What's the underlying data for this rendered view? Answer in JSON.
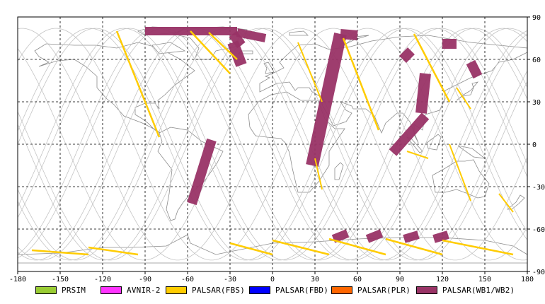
{
  "map": {
    "projection": "equirectangular",
    "lon_range": [
      -180,
      180
    ],
    "lat_range": [
      -90,
      90
    ],
    "graticule_style": "dashed",
    "x_ticks": [
      "-180",
      "-150",
      "-120",
      "-90",
      "-60",
      "-30",
      "0",
      "30",
      "60",
      "90",
      "120",
      "150",
      "180"
    ],
    "y_ticks": [
      "90",
      "60",
      "30",
      "0",
      "-30",
      "-60",
      "-90"
    ],
    "colors": {
      "coastline": "#8c8c8c",
      "orbit_track": "#c4c4c4",
      "graticule": "#000000"
    }
  },
  "legend": {
    "items": [
      {
        "label": "PRSIM",
        "color": "#99cc33"
      },
      {
        "label": "AVNIR-2",
        "color": "#ff33ff"
      },
      {
        "label": "PALSAR(FBS)",
        "color": "#ffcc00"
      },
      {
        "label": "PALSAR(FBD)",
        "color": "#0000ff"
      },
      {
        "label": "PALSAR(PLR)",
        "color": "#ff6600"
      },
      {
        "label": "PALSAR(WB1/WB2)",
        "color": "#993366"
      }
    ]
  },
  "swaths": {
    "wb": [
      {
        "lon": [
          -90,
          -25
        ],
        "lat": [
          80,
          80
        ],
        "w": 6
      },
      {
        "lon": [
          -28,
          -22
        ],
        "lat": [
          78,
          70
        ],
        "w": 7
      },
      {
        "lon": [
          -25,
          -5
        ],
        "lat": [
          79,
          75
        ],
        "w": 6
      },
      {
        "lon": [
          -28,
          -22
        ],
        "lat": [
          72,
          56
        ],
        "w": 8
      },
      {
        "lon": [
          28,
          48
        ],
        "lat": [
          -15,
          78
        ],
        "w": 9
      },
      {
        "lon": [
          48,
          60
        ],
        "lat": [
          78,
          77
        ],
        "w": 7
      },
      {
        "lon": [
          -57,
          -43
        ],
        "lat": [
          -42,
          3
        ],
        "w": 7
      },
      {
        "lon": [
          85,
          108
        ],
        "lat": [
          -6,
          20
        ],
        "w": 7
      },
      {
        "lon": [
          105,
          108
        ],
        "lat": [
          22,
          50
        ],
        "w": 8
      },
      {
        "lon": [
          92,
          98
        ],
        "lat": [
          60,
          66
        ],
        "w": 7
      },
      {
        "lon": [
          120,
          130
        ],
        "lat": [
          71,
          71
        ],
        "w": 7
      },
      {
        "lon": [
          140,
          145
        ],
        "lat": [
          58,
          48
        ],
        "w": 7
      },
      {
        "lon": [
          43,
          53
        ],
        "lat": [
          -67,
          -63
        ],
        "w": 6
      },
      {
        "lon": [
          67,
          77
        ],
        "lat": [
          -67,
          -63
        ],
        "w": 6
      },
      {
        "lon": [
          93,
          103
        ],
        "lat": [
          -67,
          -64
        ],
        "w": 6
      },
      {
        "lon": [
          114,
          124
        ],
        "lat": [
          -67,
          -64
        ],
        "w": 6
      }
    ],
    "fbs": [
      {
        "lon": [
          -110,
          -80
        ],
        "lat": [
          80,
          5
        ],
        "w": 2.5
      },
      {
        "lon": [
          -58,
          -30
        ],
        "lat": [
          80,
          50
        ],
        "w": 2.5
      },
      {
        "lon": [
          -45,
          -25
        ],
        "lat": [
          79,
          60
        ],
        "w": 2.5
      },
      {
        "lon": [
          18,
          35
        ],
        "lat": [
          72,
          30
        ],
        "w": 2
      },
      {
        "lon": [
          50,
          75
        ],
        "lat": [
          75,
          10
        ],
        "w": 2.5
      },
      {
        "lon": [
          30,
          35
        ],
        "lat": [
          -10,
          -32
        ],
        "w": 2
      },
      {
        "lon": [
          100,
          125
        ],
        "lat": [
          78,
          30
        ],
        "w": 2.5
      },
      {
        "lon": [
          130,
          140
        ],
        "lat": [
          40,
          25
        ],
        "w": 2
      },
      {
        "lon": [
          125,
          140
        ],
        "lat": [
          0,
          -40
        ],
        "w": 2
      },
      {
        "lon": [
          160,
          170
        ],
        "lat": [
          -35,
          -48
        ],
        "w": 2
      },
      {
        "lon": [
          95,
          110
        ],
        "lat": [
          -5,
          -10
        ],
        "w": 2
      },
      {
        "lon": [
          -170,
          -130
        ],
        "lat": [
          -75,
          -78
        ],
        "w": 2.5
      },
      {
        "lon": [
          -130,
          -95
        ],
        "lat": [
          -73,
          -78
        ],
        "w": 2.5
      },
      {
        "lon": [
          -30,
          0
        ],
        "lat": [
          -70,
          -78
        ],
        "w": 2.5
      },
      {
        "lon": [
          0,
          40
        ],
        "lat": [
          -68,
          -78
        ],
        "w": 2.5
      },
      {
        "lon": [
          40,
          80
        ],
        "lat": [
          -67,
          -78
        ],
        "w": 2.5
      },
      {
        "lon": [
          80,
          120
        ],
        "lat": [
          -67,
          -78
        ],
        "w": 2.5
      },
      {
        "lon": [
          120,
          170
        ],
        "lat": [
          -68,
          -78
        ],
        "w": 2.5
      }
    ]
  }
}
